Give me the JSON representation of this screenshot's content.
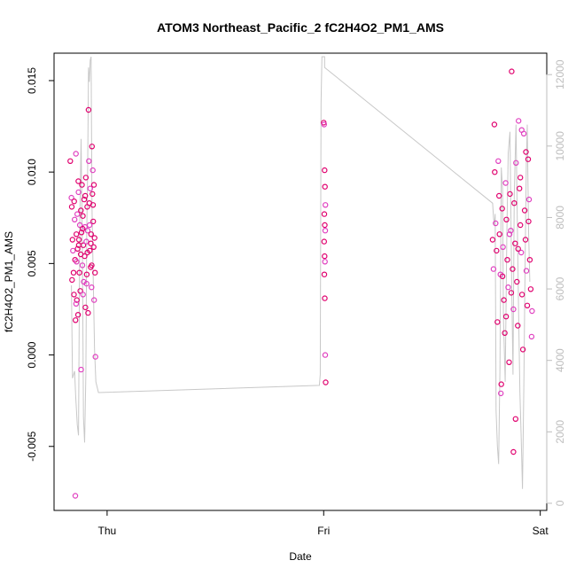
{
  "chart_data": {
    "type": "scatter",
    "title": "ATOM3 Northeast_Pacific_2 fC2H4O2_PM1_AMS",
    "xlabel": "Date",
    "ylabel": "fC2H4O2_PM1_AMS",
    "x_ticks": [
      "Thu",
      "Fri",
      "Sat"
    ],
    "y_ticks": [
      "-0.005",
      "0.000",
      "0.005",
      "0.010",
      "0.015"
    ],
    "y_tick_values": [
      -0.005,
      0.0,
      0.005,
      0.01,
      0.015
    ],
    "y_right_ticks": [
      "0",
      "2000",
      "4000",
      "6000",
      "8000",
      "10000",
      "12000"
    ],
    "y_right_tick_values": [
      0,
      2000,
      4000,
      6000,
      8000,
      10000,
      12000
    ],
    "xlim_days": [
      -0.245,
      2.03
    ],
    "ylim": [
      -0.0085,
      0.0165
    ],
    "y_right_lim": [
      -200,
      12600
    ],
    "grid": false,
    "colors": {
      "points_primary": "#e0006e",
      "points_secondary": "#e040c0",
      "altitude_line": "#c8c8c8",
      "right_axis": "#bdbdbd"
    },
    "series": [
      {
        "group": "Thu",
        "x_day_range": [
          -0.17,
          -0.02
        ],
        "points": [
          [
            -0.17,
            0.0106
          ],
          [
            -0.165,
            0.0086
          ],
          [
            -0.163,
            0.0081
          ],
          [
            -0.16,
            0.0063
          ],
          [
            -0.158,
            0.0057
          ],
          [
            -0.155,
            0.0045
          ],
          [
            -0.153,
            0.0033
          ],
          [
            -0.15,
            0.0074
          ],
          [
            -0.148,
            0.0052
          ],
          [
            -0.146,
            0.0019
          ],
          [
            -0.144,
            0.011
          ],
          [
            -0.142,
            0.0066
          ],
          [
            -0.14,
            0.003
          ],
          [
            -0.138,
            0.0077
          ],
          [
            -0.136,
            0.0058
          ],
          [
            -0.134,
            0.0022
          ],
          [
            -0.132,
            0.0089
          ],
          [
            -0.13,
            0.0063
          ],
          [
            -0.128,
            0.0045
          ],
          [
            -0.126,
            0.0071
          ],
          [
            -0.124,
            0.0035
          ],
          [
            -0.122,
            0.0055
          ],
          [
            -0.12,
            -0.0008
          ],
          [
            -0.118,
            0.0067
          ],
          [
            -0.116,
            0.0093
          ],
          [
            -0.114,
            0.0049
          ],
          [
            -0.112,
            0.0076
          ],
          [
            -0.11,
            0.006
          ],
          [
            -0.108,
            0.004
          ],
          [
            -0.106,
            0.0085
          ],
          [
            -0.104,
            0.0054
          ],
          [
            -0.102,
            0.007
          ],
          [
            -0.1,
            0.0026
          ],
          [
            -0.098,
            0.0097
          ],
          [
            -0.096,
            0.0062
          ],
          [
            -0.094,
            0.0044
          ],
          [
            -0.092,
            0.0081
          ],
          [
            -0.09,
            0.0068
          ],
          [
            -0.088,
            0.0023
          ],
          [
            -0.086,
            0.0134
          ],
          [
            -0.084,
            0.0106
          ],
          [
            -0.082,
            0.0083
          ],
          [
            -0.08,
            0.0057
          ],
          [
            -0.078,
            0.0091
          ],
          [
            -0.076,
            0.0048
          ],
          [
            -0.074,
            0.0066
          ],
          [
            -0.072,
            0.0037
          ],
          [
            -0.07,
            0.0114
          ],
          [
            -0.068,
            0.0088
          ],
          [
            -0.066,
            0.0101
          ],
          [
            -0.064,
            0.0073
          ],
          [
            -0.062,
            0.0059
          ],
          [
            -0.06,
            0.003
          ],
          [
            -0.058,
            0.0064
          ],
          [
            -0.056,
            0.0045
          ],
          [
            -0.054,
            -0.0001
          ],
          [
            -0.162,
            0.0041
          ],
          [
            -0.152,
            0.0084
          ],
          [
            -0.141,
            0.0051
          ],
          [
            -0.131,
            0.006
          ],
          [
            -0.121,
            0.0079
          ],
          [
            -0.111,
            0.0033
          ],
          [
            -0.101,
            0.0087
          ],
          [
            -0.091,
            0.0056
          ],
          [
            -0.081,
            0.0071
          ],
          [
            -0.071,
            0.0049
          ],
          [
            -0.061,
            0.0093
          ],
          [
            -0.143,
            0.0028
          ],
          [
            -0.133,
            0.0095
          ],
          [
            -0.113,
            0.0069
          ],
          [
            -0.095,
            0.0039
          ],
          [
            -0.075,
            0.0061
          ],
          [
            -0.065,
            0.0082
          ],
          [
            -0.147,
            -0.0077
          ]
        ]
      },
      {
        "group": "Fri",
        "x_day_range": [
          0.99,
          1.01
        ],
        "points": [
          [
            1.0,
            0.0127
          ],
          [
            1.002,
            0.0126
          ],
          [
            1.004,
            0.0101
          ],
          [
            1.006,
            0.0092
          ],
          [
            1.008,
            0.0082
          ],
          [
            1.003,
            0.0077
          ],
          [
            1.005,
            0.0071
          ],
          [
            1.007,
            0.0068
          ],
          [
            1.002,
            0.0062
          ],
          [
            1.004,
            0.0054
          ],
          [
            1.006,
            0.0051
          ],
          [
            1.003,
            0.0044
          ],
          [
            1.005,
            0.0031
          ],
          [
            1.007,
            0.0
          ],
          [
            1.009,
            -0.0015
          ]
        ]
      },
      {
        "group": "Sat",
        "x_day_range": [
          1.78,
          2.0
        ],
        "points": [
          [
            1.78,
            0.0063
          ],
          [
            1.784,
            0.0047
          ],
          [
            1.788,
            0.0126
          ],
          [
            1.79,
            0.01
          ],
          [
            1.794,
            0.0072
          ],
          [
            1.798,
            0.0057
          ],
          [
            1.802,
            0.0018
          ],
          [
            1.806,
            0.0106
          ],
          [
            1.81,
            0.0087
          ],
          [
            1.812,
            0.0066
          ],
          [
            1.816,
            0.0044
          ],
          [
            1.82,
            -0.0016
          ],
          [
            1.824,
            0.008
          ],
          [
            1.828,
            0.0059
          ],
          [
            1.832,
            0.003
          ],
          [
            1.836,
            0.0012
          ],
          [
            1.84,
            0.0094
          ],
          [
            1.844,
            0.0074
          ],
          [
            1.848,
            0.0052
          ],
          [
            1.852,
            0.0037
          ],
          [
            1.856,
            -0.0004
          ],
          [
            1.86,
            0.0088
          ],
          [
            1.864,
            0.0068
          ],
          [
            1.868,
            0.0155
          ],
          [
            1.872,
            0.0047
          ],
          [
            1.876,
            0.0025
          ],
          [
            1.88,
            0.0083
          ],
          [
            1.884,
            0.0061
          ],
          [
            1.888,
            0.0105
          ],
          [
            1.892,
            0.004
          ],
          [
            1.896,
            0.0016
          ],
          [
            1.9,
            0.0128
          ],
          [
            1.904,
            0.0091
          ],
          [
            1.908,
            0.0071
          ],
          [
            1.912,
            0.0056
          ],
          [
            1.916,
            0.0033
          ],
          [
            1.92,
            0.0003
          ],
          [
            1.924,
            0.0121
          ],
          [
            1.928,
            0.0079
          ],
          [
            1.932,
            0.0063
          ],
          [
            1.936,
            0.0046
          ],
          [
            1.94,
            0.0027
          ],
          [
            1.944,
            0.0107
          ],
          [
            1.948,
            0.0085
          ],
          [
            1.952,
            0.0052
          ],
          [
            1.956,
            0.0036
          ],
          [
            1.96,
            0.001
          ],
          [
            1.876,
            -0.0053
          ],
          [
            1.886,
            -0.0035
          ],
          [
            1.818,
            -0.0021
          ],
          [
            1.842,
            0.0021
          ],
          [
            1.866,
            0.0034
          ],
          [
            1.914,
            0.0123
          ],
          [
            1.934,
            0.0111
          ],
          [
            1.908,
            0.0097
          ],
          [
            1.858,
            0.0066
          ],
          [
            1.826,
            0.0043
          ],
          [
            1.946,
            0.0073
          ],
          [
            1.962,
            0.0024
          ],
          [
            1.898,
            0.0058
          ]
        ]
      }
    ],
    "altitude_line": {
      "axis": "right",
      "points": [
        [
          -0.165,
          6100
        ],
        [
          -0.16,
          3500
        ],
        [
          -0.15,
          3700
        ],
        [
          -0.145,
          3000
        ],
        [
          -0.138,
          2200
        ],
        [
          -0.132,
          1900
        ],
        [
          -0.126,
          8000
        ],
        [
          -0.12,
          10200
        ],
        [
          -0.114,
          7000
        ],
        [
          -0.109,
          2400
        ],
        [
          -0.104,
          1700
        ],
        [
          -0.098,
          3600
        ],
        [
          -0.094,
          7600
        ],
        [
          -0.09,
          9300
        ],
        [
          -0.086,
          12200
        ],
        [
          -0.082,
          11800
        ],
        [
          -0.078,
          12400
        ],
        [
          -0.074,
          12500
        ],
        [
          -0.07,
          8300
        ],
        [
          -0.064,
          6300
        ],
        [
          -0.058,
          4300
        ],
        [
          -0.052,
          3400
        ],
        [
          -0.04,
          3100
        ],
        [
          0.98,
          3300
        ],
        [
          0.984,
          3600
        ],
        [
          0.988,
          11200
        ],
        [
          0.992,
          12500
        ],
        [
          1.004,
          12500
        ],
        [
          1.004,
          12200
        ],
        [
          1.78,
          8400
        ],
        [
          1.784,
          8000
        ],
        [
          1.788,
          7800
        ],
        [
          1.792,
          8100
        ],
        [
          1.796,
          2600
        ],
        [
          1.802,
          1600
        ],
        [
          1.808,
          1100
        ],
        [
          1.814,
          3800
        ],
        [
          1.82,
          9400
        ],
        [
          1.826,
          8800
        ],
        [
          1.83,
          5200
        ],
        [
          1.838,
          3400
        ],
        [
          1.846,
          7600
        ],
        [
          1.852,
          9800
        ],
        [
          1.86,
          10400
        ],
        [
          1.868,
          6200
        ],
        [
          1.874,
          3600
        ],
        [
          1.88,
          8600
        ],
        [
          1.888,
          10600
        ],
        [
          1.894,
          7800
        ],
        [
          1.9,
          5400
        ],
        [
          1.906,
          3100
        ],
        [
          1.912,
          1800
        ],
        [
          1.918,
          400
        ],
        [
          1.924,
          3200
        ],
        [
          1.93,
          6800
        ],
        [
          1.936,
          9600
        ],
        [
          1.94,
          10600
        ],
        [
          1.946,
          7600
        ],
        [
          1.952,
          6200
        ]
      ]
    }
  }
}
